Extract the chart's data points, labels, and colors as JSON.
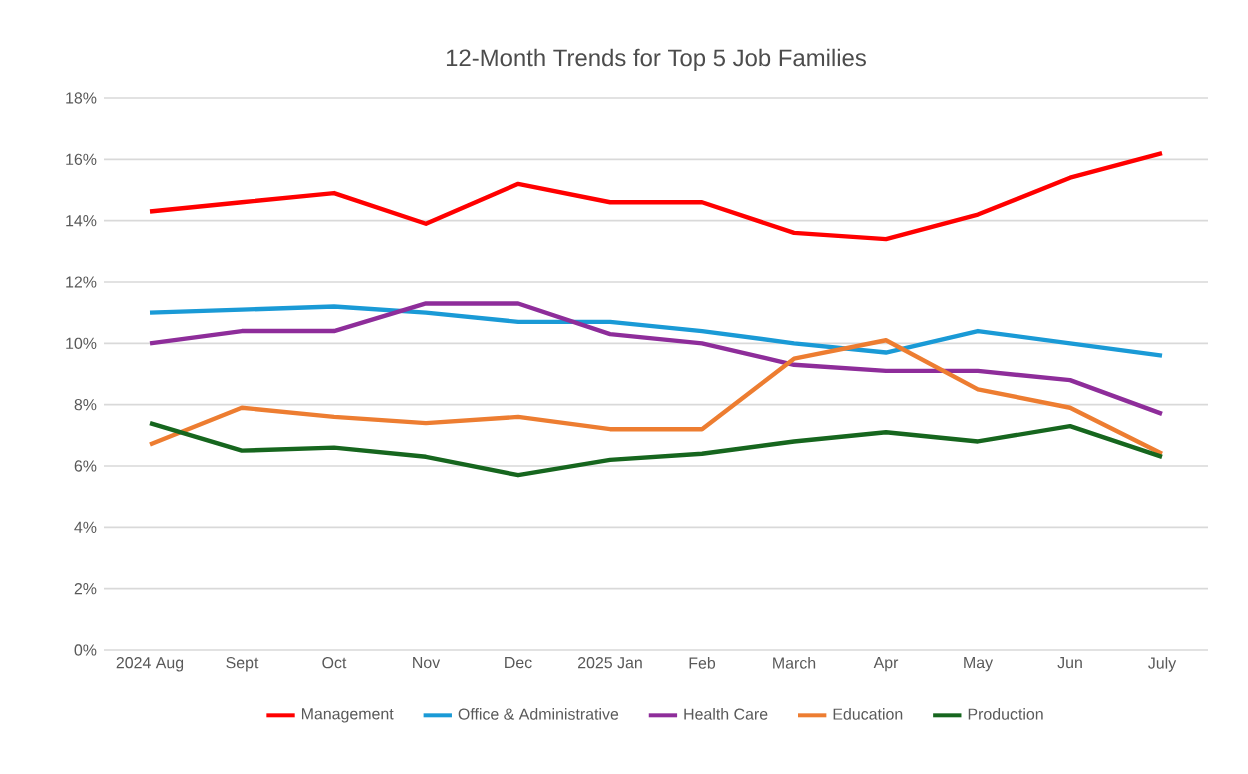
{
  "chart_data": {
    "type": "line",
    "title": "12-Month Trends for Top 5 Job Families",
    "categories": [
      "2024 Aug",
      "Sept",
      "Oct",
      "Nov",
      "Dec",
      "2025 Jan",
      "Feb",
      "March",
      "Apr",
      "May",
      "Jun",
      "July"
    ],
    "series": [
      {
        "name": "Management",
        "color": "#ff0000",
        "values": [
          14.3,
          14.6,
          14.9,
          13.9,
          15.2,
          14.6,
          14.6,
          13.6,
          13.4,
          14.2,
          15.4,
          16.2
        ]
      },
      {
        "name": "Office & Administrative",
        "color": "#1a9ad6",
        "values": [
          11.0,
          11.1,
          11.2,
          11.0,
          10.7,
          10.7,
          10.4,
          10.0,
          9.7,
          10.4,
          10.0,
          9.6
        ]
      },
      {
        "name": "Health Care",
        "color": "#8e2d9a",
        "values": [
          10.0,
          10.4,
          10.4,
          11.3,
          11.3,
          10.3,
          10.0,
          9.3,
          9.1,
          9.1,
          8.8,
          7.7
        ]
      },
      {
        "name": "Education",
        "color": "#ed7d31",
        "values": [
          6.7,
          7.9,
          7.6,
          7.4,
          7.6,
          7.2,
          7.2,
          9.5,
          10.1,
          8.5,
          7.9,
          6.4
        ]
      },
      {
        "name": "Production",
        "color": "#16661e",
        "values": [
          7.4,
          6.5,
          6.6,
          6.3,
          5.7,
          6.2,
          6.4,
          6.8,
          7.1,
          6.8,
          7.3,
          6.3
        ]
      }
    ],
    "ylim": [
      0,
      18
    ],
    "yticks": [
      {
        "value": 0,
        "label": "0%"
      },
      {
        "value": 2,
        "label": "2%"
      },
      {
        "value": 4,
        "label": "4%"
      },
      {
        "value": 6,
        "label": "6%"
      },
      {
        "value": 8,
        "label": "8%"
      },
      {
        "value": 10,
        "label": "10%"
      },
      {
        "value": 12,
        "label": "12%"
      },
      {
        "value": 14,
        "label": "14%"
      },
      {
        "value": 16,
        "label": "16%"
      },
      {
        "value": 18,
        "label": "18%"
      }
    ],
    "grid": "y",
    "legend": "bottom",
    "marker": "none",
    "line_style": "solid"
  }
}
